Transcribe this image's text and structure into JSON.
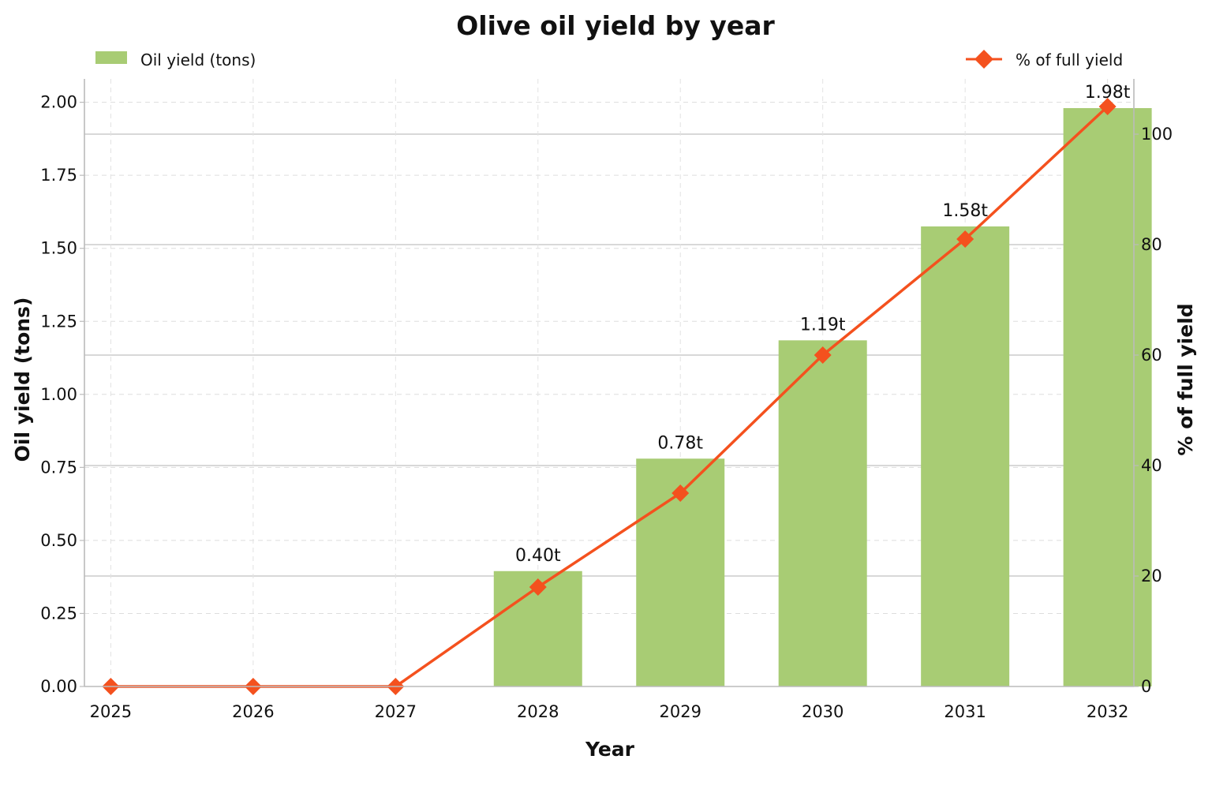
{
  "chart_data": {
    "type": "bar",
    "title": "Olive oil yield by year",
    "xlabel": "Year",
    "ylabel": "Oil yield (tons)",
    "ylabel_right": "% of full yield",
    "categories": [
      "2025",
      "2026",
      "2027",
      "2028",
      "2029",
      "2030",
      "2031",
      "2032"
    ],
    "series": [
      {
        "name": "Oil yield (tons)",
        "type": "bar",
        "axis": "left",
        "color": "#a8cc74",
        "values": [
          0,
          0,
          0,
          0.395,
          0.78,
          1.185,
          1.575,
          1.98
        ],
        "data_labels": [
          "",
          "",
          "",
          "0.40t",
          "0.78t",
          "1.19t",
          "1.58t",
          "1.98t"
        ]
      },
      {
        "name": "% of full yield",
        "type": "line",
        "axis": "right",
        "color": "#f4511e",
        "marker": "diamond",
        "values": [
          0,
          0,
          0,
          18,
          35,
          60,
          81,
          105
        ]
      }
    ],
    "ylim": [
      0,
      2.08
    ],
    "yticks": [
      "0.00",
      "0.25",
      "0.50",
      "0.75",
      "1.00",
      "1.25",
      "1.50",
      "1.75",
      "2.00"
    ],
    "ylim_right": [
      0,
      110
    ],
    "yticks_right": [
      "0",
      "20",
      "40",
      "60",
      "80",
      "100"
    ],
    "grid": true,
    "legend": [
      "top-left",
      "top-right"
    ]
  }
}
